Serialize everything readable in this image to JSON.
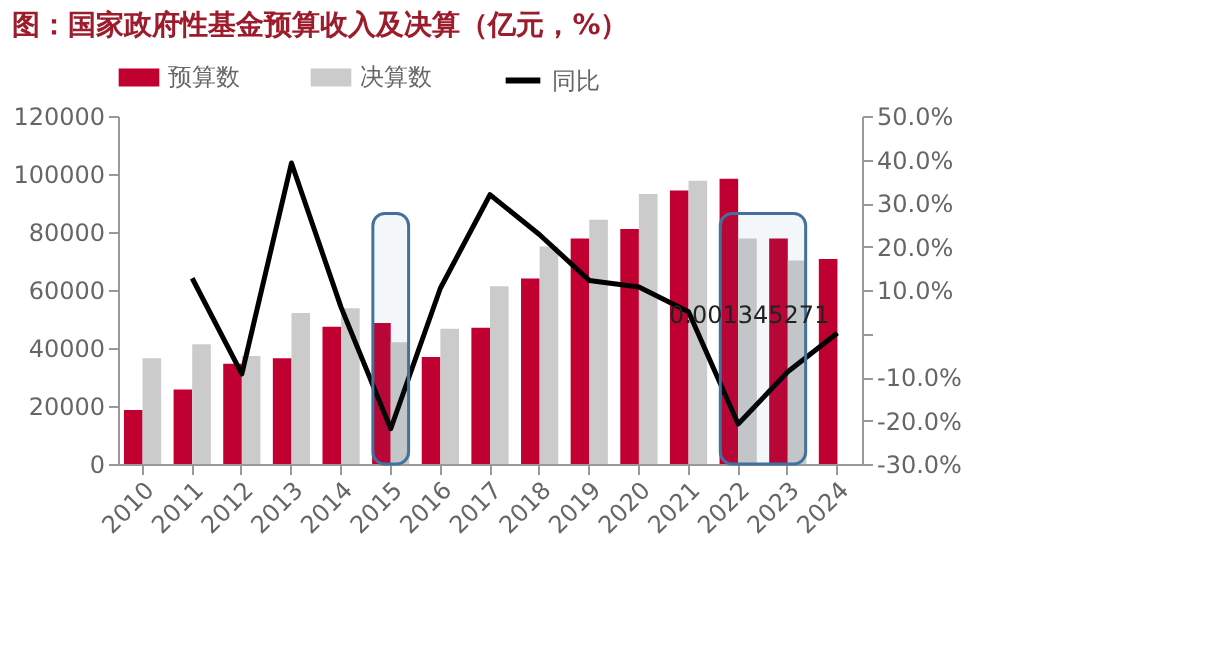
{
  "chart_data": {
    "type": "bar",
    "title": "图：国家政府性基金预算收入及决算（亿元，%）",
    "categories": [
      "2010",
      "2011",
      "2012",
      "2013",
      "2014",
      "2015",
      "2016",
      "2017",
      "2018",
      "2019",
      "2020",
      "2021",
      "2022",
      "2023",
      "2024"
    ],
    "series": [
      {
        "name": "预算数",
        "color": "#c00030",
        "values": [
          18600,
          25700,
          34600,
          36500,
          47300,
          48600,
          36900,
          47000,
          64000,
          77800,
          81000,
          94300,
          98400,
          77800,
          70700
        ]
      },
      {
        "name": "决算数",
        "color": "#cbcbcb",
        "values": [
          36500,
          41300,
          37200,
          52100,
          53700,
          42000,
          46600,
          61300,
          75000,
          84200,
          93100,
          97700,
          77800,
          70200,
          null
        ]
      },
      {
        "name": "同比",
        "type": "line",
        "axis": "y2",
        "color": "#000000",
        "values": [
          null,
          12.7,
          -9.3,
          39.2,
          6,
          -21.9,
          10.4,
          31.9,
          22.7,
          12.2,
          10.7,
          5.0,
          -20.8,
          -8.8,
          0.13
        ]
      }
    ],
    "ylim": [
      0,
      120000
    ],
    "yticks": [
      0,
      20000,
      40000,
      60000,
      80000,
      100000,
      120000
    ],
    "y2lim": [
      -30,
      50
    ],
    "y2ticks": [
      {
        "value": -30,
        "label": "-30.0%"
      },
      {
        "value": -20,
        "label": "-20.0%"
      },
      {
        "value": -10,
        "label": "-10.0%"
      },
      {
        "value": 0,
        "label": null
      },
      {
        "value": 10,
        "label": "10.0%"
      },
      {
        "value": 20,
        "label": "20.0%"
      },
      {
        "value": 30,
        "label": "30.0%"
      },
      {
        "value": 40,
        "label": "40.0%"
      },
      {
        "value": 50,
        "label": "50.0%"
      }
    ],
    "legend": "top",
    "annotations": [
      "0.001345271"
    ],
    "bands": [
      {
        "axis": "x",
        "from": "2015",
        "to": "2015",
        "color": "#41719c"
      },
      {
        "axis": "x",
        "from": "2022",
        "to": "2023",
        "color": "#41719c"
      }
    ]
  }
}
